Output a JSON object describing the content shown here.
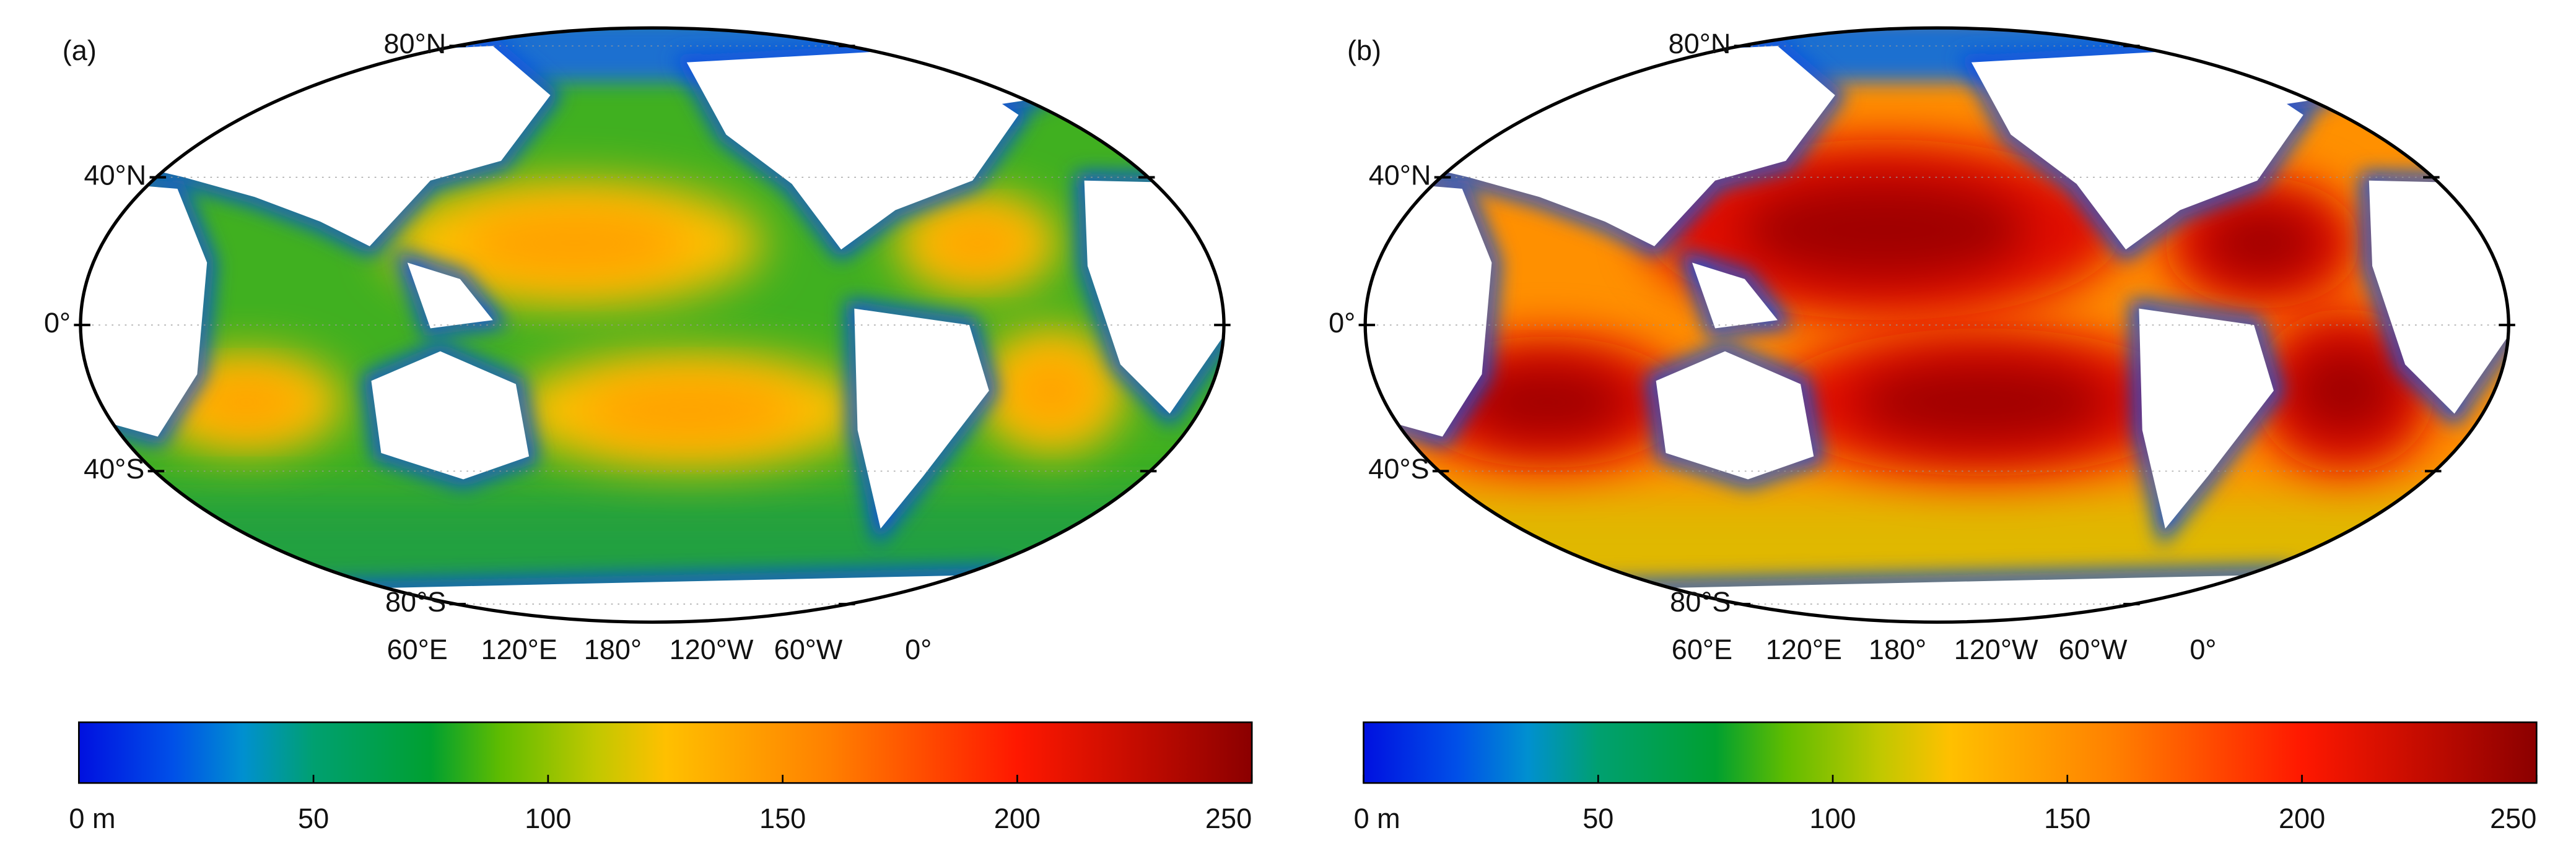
{
  "panels": [
    {
      "label": "(a)",
      "lat_labels": [
        "80°N",
        "40°N",
        "0°",
        "40°S",
        "80°S"
      ],
      "lon_labels": [
        "60°E",
        "120°E",
        "180°",
        "120°W",
        "60°W",
        "0°"
      ],
      "colorbar": {
        "range": [
          0,
          250
        ],
        "ticks": [
          {
            "value": 0,
            "label": "0 m"
          },
          50,
          100,
          150,
          200,
          250
        ]
      }
    },
    {
      "label": "(b)",
      "lat_labels": [
        "80°N",
        "40°N",
        "0°",
        "40°S",
        "80°S"
      ],
      "lon_labels": [
        "60°E",
        "120°E",
        "180°",
        "120°W",
        "60°W",
        "0°"
      ],
      "colorbar": {
        "range": [
          0,
          250
        ],
        "ticks": [
          {
            "value": 0,
            "label": "0 m"
          },
          50,
          100,
          150,
          200,
          250
        ]
      }
    }
  ]
}
